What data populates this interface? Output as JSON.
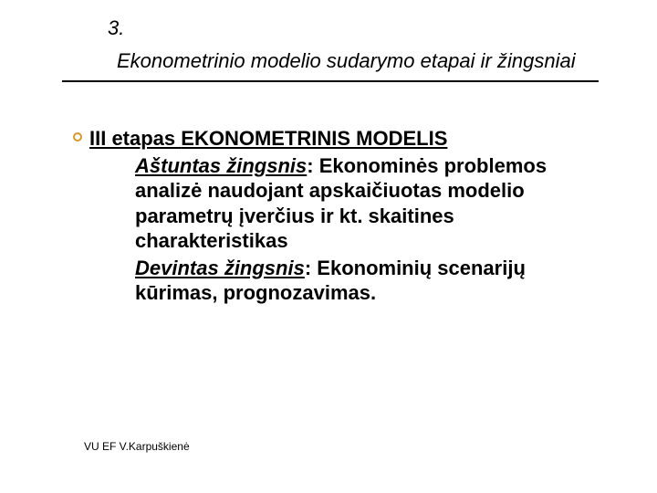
{
  "slide": {
    "number": "3.",
    "title": "Ekonometrinio modelio sudarymo etapai ir žingsniai"
  },
  "stage": {
    "heading_prefix": "III etapas ",
    "heading_main": "EKONOMETRINIS MODELIS"
  },
  "step8": {
    "label": "Aštuntas žingsnis",
    "text": ": Ekonominės problemos analizė naudojant apskaičiuotas modelio parametrų įverčius ir kt. skaitines charakteristikas"
  },
  "step9": {
    "label": "Devintas žingsnis",
    "text": ": Ekonominių scenarijų kūrimas, prognozavimas."
  },
  "footer": "VU EF V.Karpuškienė",
  "colors": {
    "text": "#000000",
    "bullet_ring": "#d99829",
    "background": "#ffffff"
  },
  "typography": {
    "title_fontsize_pt": 17,
    "body_fontsize_pt": 17,
    "footer_fontsize_pt": 9,
    "title_style": "italic",
    "body_weight": "bold"
  }
}
